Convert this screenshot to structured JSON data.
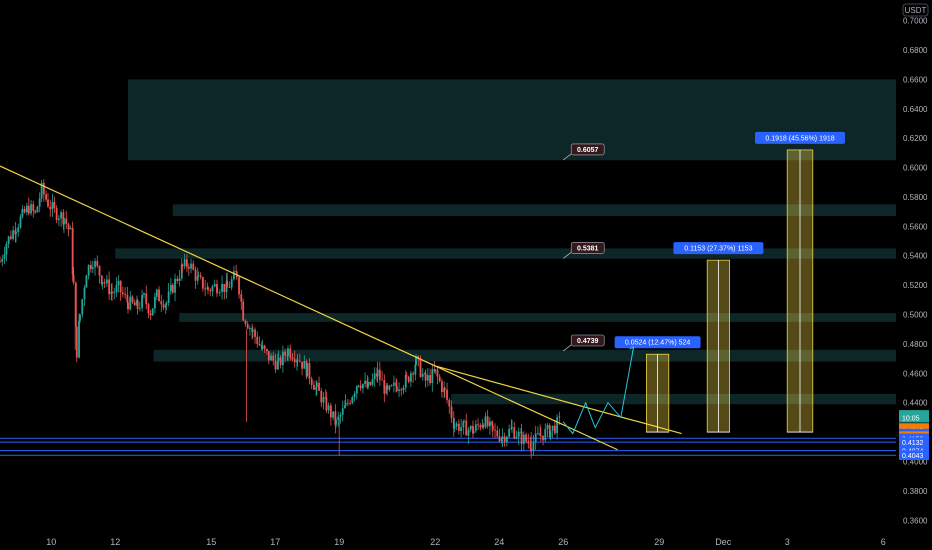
{
  "chart_data": {
    "type": "candlestick",
    "currency": "USDT",
    "ylim": [
      0.35,
      0.714
    ],
    "y_ticks": [
      "0.7000",
      "0.6800",
      "0.6600",
      "0.6400",
      "0.6200",
      "0.6000",
      "0.5800",
      "0.5600",
      "0.5400",
      "0.5200",
      "0.5000",
      "0.4800",
      "0.4600",
      "0.4400",
      "0.4200",
      "0.4000",
      "0.3800",
      "0.3600"
    ],
    "x_ticks": [
      {
        "label": "10",
        "day": 10
      },
      {
        "label": "12",
        "day": 12
      },
      {
        "label": "15",
        "day": 15
      },
      {
        "label": "17",
        "day": 17
      },
      {
        "label": "19",
        "day": 19
      },
      {
        "label": "22",
        "day": 22
      },
      {
        "label": "24",
        "day": 24
      },
      {
        "label": "26",
        "day": 26
      },
      {
        "label": "29",
        "day": 29
      },
      {
        "label": "Dec",
        "day": 31
      },
      {
        "label": "3",
        "day": 33
      },
      {
        "label": "6",
        "day": 36
      }
    ],
    "x_range_days": [
      8.4,
      36.4
    ],
    "price_path": [
      [
        8.4,
        0.536
      ],
      [
        8.6,
        0.549
      ],
      [
        8.9,
        0.56
      ],
      [
        9.1,
        0.567
      ],
      [
        9.3,
        0.573
      ],
      [
        9.5,
        0.568
      ],
      [
        9.7,
        0.585
      ],
      [
        9.9,
        0.576
      ],
      [
        10.1,
        0.57
      ],
      [
        10.4,
        0.566
      ],
      [
        10.6,
        0.555
      ],
      [
        10.7,
        0.52
      ],
      [
        10.8,
        0.475
      ],
      [
        10.9,
        0.5
      ],
      [
        11.1,
        0.53
      ],
      [
        11.3,
        0.537
      ],
      [
        11.6,
        0.524
      ],
      [
        11.9,
        0.515
      ],
      [
        12.1,
        0.518
      ],
      [
        12.4,
        0.508
      ],
      [
        12.7,
        0.505
      ],
      [
        12.9,
        0.511
      ],
      [
        13.1,
        0.502
      ],
      [
        13.3,
        0.513
      ],
      [
        13.6,
        0.508
      ],
      [
        13.8,
        0.519
      ],
      [
        14.1,
        0.532
      ],
      [
        14.3,
        0.535
      ],
      [
        14.6,
        0.523
      ],
      [
        14.9,
        0.517
      ],
      [
        15.2,
        0.52
      ],
      [
        15.5,
        0.518
      ],
      [
        15.8,
        0.528
      ],
      [
        16.0,
        0.5
      ],
      [
        16.3,
        0.488
      ],
      [
        16.6,
        0.476
      ],
      [
        16.8,
        0.471
      ],
      [
        17.1,
        0.466
      ],
      [
        17.4,
        0.476
      ],
      [
        17.7,
        0.471
      ],
      [
        18.0,
        0.462
      ],
      [
        18.3,
        0.449
      ],
      [
        18.6,
        0.438
      ],
      [
        18.9,
        0.426
      ],
      [
        19.2,
        0.437
      ],
      [
        19.6,
        0.455
      ],
      [
        19.9,
        0.45
      ],
      [
        20.2,
        0.46
      ],
      [
        20.5,
        0.446
      ],
      [
        20.8,
        0.452
      ],
      [
        21.1,
        0.455
      ],
      [
        21.4,
        0.468
      ],
      [
        21.7,
        0.455
      ],
      [
        22.0,
        0.46
      ],
      [
        22.3,
        0.447
      ],
      [
        22.6,
        0.425
      ],
      [
        22.9,
        0.423
      ],
      [
        23.2,
        0.421
      ],
      [
        23.5,
        0.428
      ],
      [
        23.8,
        0.42
      ],
      [
        24.1,
        0.417
      ],
      [
        24.4,
        0.422
      ],
      [
        24.7,
        0.416
      ],
      [
        25.0,
        0.412
      ],
      [
        25.3,
        0.418
      ],
      [
        25.6,
        0.421
      ],
      [
        25.9,
        0.427
      ]
    ],
    "trend_lines": [
      {
        "from": [
          8.4,
          0.601
        ],
        "to": [
          27.7,
          0.408
        ]
      },
      {
        "from": [
          22.0,
          0.465
        ],
        "to": [
          29.7,
          0.419
        ]
      }
    ],
    "support_levels": [
      {
        "price": 0.4158,
        "label": "0.4158"
      },
      {
        "price": 0.4132,
        "label": "0.4132"
      },
      {
        "price": 0.4074,
        "label": "0.4074"
      },
      {
        "price": 0.4043,
        "label": "0.4043"
      }
    ],
    "zones": [
      {
        "from_day": 12.4,
        "to_day": 36.4,
        "low": 0.605,
        "high": 0.66
      },
      {
        "from_day": 13.8,
        "to_day": 36.4,
        "low": 0.567,
        "high": 0.575
      },
      {
        "from_day": 12.0,
        "to_day": 36.4,
        "low": 0.538,
        "high": 0.545
      },
      {
        "from_day": 14.0,
        "to_day": 36.4,
        "low": 0.495,
        "high": 0.501
      },
      {
        "from_day": 13.2,
        "to_day": 36.4,
        "low": 0.468,
        "high": 0.476
      },
      {
        "from_day": 22.5,
        "to_day": 36.4,
        "low": 0.439,
        "high": 0.446
      }
    ],
    "targets": [
      {
        "value": "0.4739",
        "day": 26.0,
        "price": 0.482
      },
      {
        "value": "0.5381",
        "day": 26.0,
        "price": 0.545
      },
      {
        "value": "0.6057",
        "day": 26.0,
        "price": 0.612
      }
    ],
    "measures": [
      {
        "label": "0.0524 (12.47%) 524",
        "from_day": 28.6,
        "to_day": 29.3,
        "low": 0.42,
        "high": 0.473
      },
      {
        "label": "0.1153 (27.37%) 1153",
        "from_day": 30.5,
        "to_day": 31.2,
        "low": 0.42,
        "high": 0.537
      },
      {
        "label": "0.1918 (45.56%) 1918",
        "from_day": 33.0,
        "to_day": 33.8,
        "low": 0.42,
        "high": 0.612
      }
    ],
    "projection": [
      [
        26.0,
        0.427
      ],
      [
        26.3,
        0.419
      ],
      [
        26.7,
        0.44
      ],
      [
        27.0,
        0.423
      ],
      [
        27.4,
        0.44
      ],
      [
        27.8,
        0.43
      ],
      [
        28.2,
        0.478
      ]
    ],
    "right_labels": [
      {
        "text": "0.4317",
        "price": 0.4317,
        "color": "#26a69a"
      },
      {
        "text": "10:05",
        "price": 0.4298,
        "color": "#26a69a"
      },
      {
        "text": "0.4218",
        "price": 0.4228,
        "color": "#f57c00"
      },
      {
        "text": "0.4215",
        "price": 0.421,
        "color": "#f57c00"
      },
      {
        "text": "0.4206",
        "price": 0.419,
        "color": "#2962ff"
      },
      {
        "text": "0.4199",
        "price": 0.4172,
        "color": "#f57c00"
      },
      {
        "text": "0.4193",
        "price": 0.4154,
        "color": "#f57c00"
      }
    ],
    "colors": {
      "up": "#26a69a",
      "down": "#ef5350",
      "trend": "#f0d343",
      "zone": "#0e2a2b",
      "support": "#2962ff",
      "measure": "#f0d343",
      "label_bg": "#2962ff",
      "target_bg": "#33181c"
    }
  }
}
